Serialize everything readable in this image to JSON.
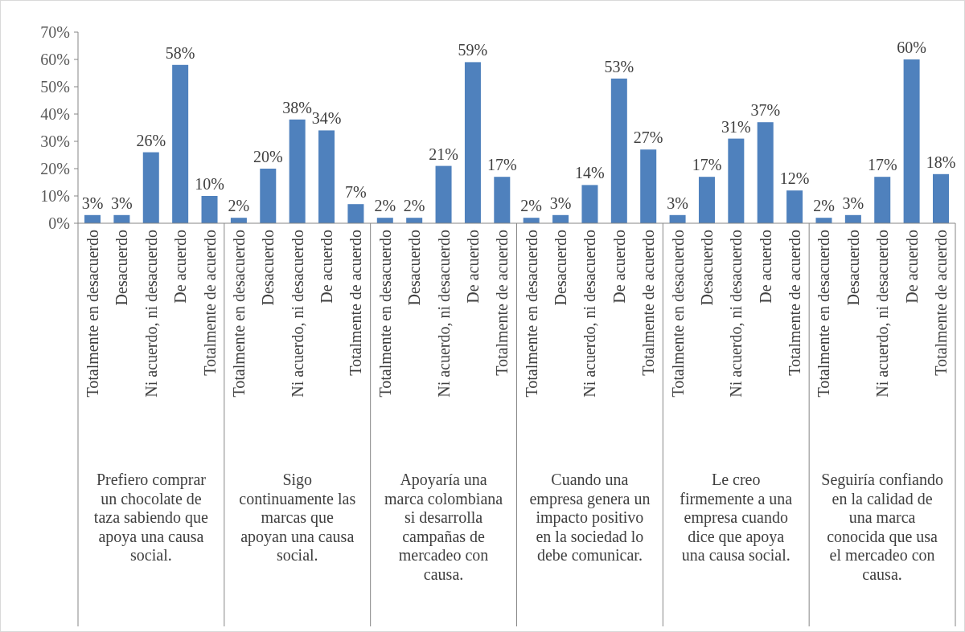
{
  "chart_data": {
    "type": "bar",
    "categories": [
      "Totalmente en desacuerdo",
      "Desacuerdo",
      "Ni acuerdo, ni desacuerdo",
      "De acuerdo",
      "Totalmente de acuerdo",
      "Totalmente en desacuerdo",
      "Desacuerdo",
      "Ni acuerdo, ni desacuerdo",
      "De acuerdo",
      "Totalmente de acuerdo",
      "Totalmente en desacuerdo",
      "Desacuerdo",
      "Ni acuerdo, ni desacuerdo",
      "De acuerdo",
      "Totalmente de acuerdo",
      "Totalmente en desacuerdo",
      "Desacuerdo",
      "Ni acuerdo, ni desacuerdo",
      "De acuerdo",
      "Totalmente de acuerdo",
      "Totalmente en desacuerdo",
      "Desacuerdo",
      "Ni acuerdo, ni desacuerdo",
      "De acuerdo",
      "Totalmente de acuerdo",
      "Totalmente en desacuerdo",
      "Desacuerdo",
      "Ni acuerdo, ni desacuerdo",
      "De acuerdo",
      "Totalmente de acuerdo"
    ],
    "values": [
      3,
      3,
      26,
      58,
      10,
      2,
      20,
      38,
      34,
      7,
      2,
      2,
      21,
      59,
      17,
      2,
      3,
      14,
      53,
      27,
      3,
      17,
      31,
      37,
      12,
      2,
      3,
      17,
      60,
      18
    ],
    "value_labels": [
      "3%",
      "3%",
      "26%",
      "58%",
      "10%",
      "2%",
      "20%",
      "38%",
      "34%",
      "7%",
      "2%",
      "2%",
      "21%",
      "59%",
      "17%",
      "2%",
      "3%",
      "14%",
      "53%",
      "27%",
      "3%",
      "17%",
      "31%",
      "37%",
      "12%",
      "2%",
      "3%",
      "17%",
      "60%",
      "18%"
    ],
    "color": "#4f81bd",
    "ylim": [
      0,
      70
    ],
    "yticks": [
      {
        "value": 0,
        "label": "0%"
      },
      {
        "value": 10,
        "label": "10%"
      },
      {
        "value": 20,
        "label": "20%"
      },
      {
        "value": 30,
        "label": "30%"
      },
      {
        "value": 40,
        "label": "40%"
      },
      {
        "value": 50,
        "label": "50%"
      },
      {
        "value": 60,
        "label": "60%"
      },
      {
        "value": 70,
        "label": "70%"
      }
    ],
    "grid": false,
    "annotations": [
      "Prefiero comprar un chocolate de taza sabiendo que apoya una causa social.",
      "Sigo continuamente las marcas que apoyan una causa social.",
      "Apoyaría una marca colombiana si desarrolla campañas de mercadeo con causa.",
      "Cuando una empresa genera un impacto positivo en la sociedad lo debe comunicar.",
      "Le creo firmemente a una empresa cuando dice que apoya una causa social.",
      "Seguiría confiando en la calidad de una marca conocida que usa el mercadeo con causa."
    ]
  }
}
